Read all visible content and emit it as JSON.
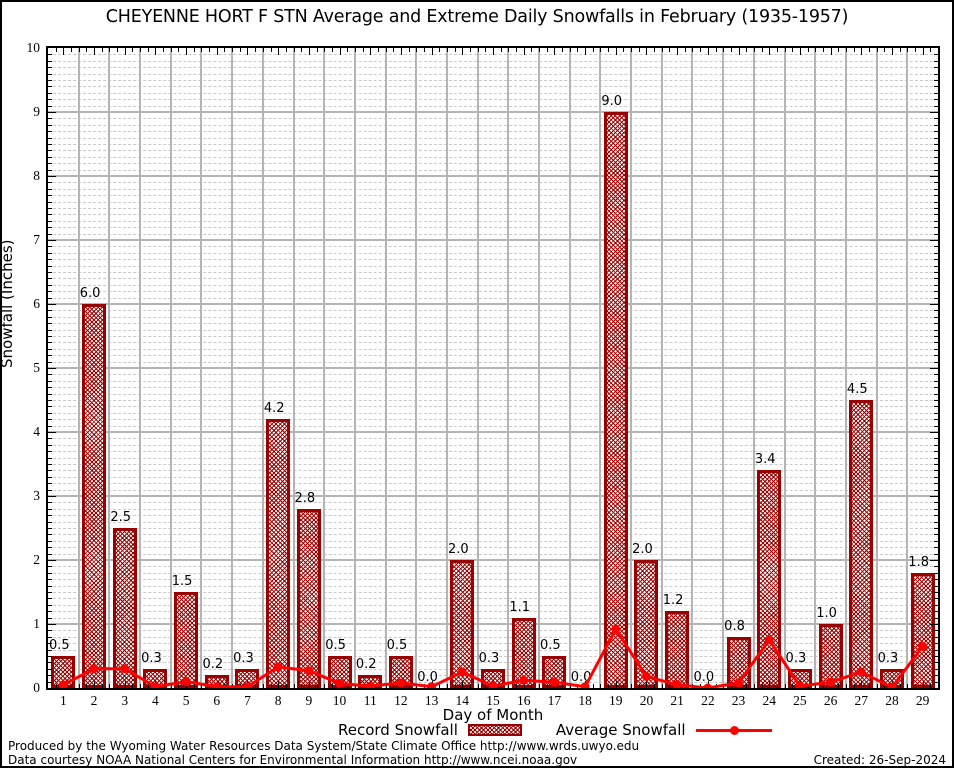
{
  "title": "CHEYENNE HORT F STN Average and Extreme Daily Snowfalls in February (1935-1957)",
  "chart_data": {
    "type": "bar",
    "title": "CHEYENNE HORT F STN Average and Extreme Daily Snowfalls in February (1935-1957)",
    "xlabel": "Day of Month",
    "ylabel": "Snowfall (Inches)",
    "ylim": [
      0,
      10
    ],
    "y_ticks": [
      0,
      1,
      2,
      3,
      4,
      5,
      6,
      7,
      8,
      9,
      10
    ],
    "grid": "major solid, minor dashed",
    "legend_position": "bottom",
    "categories": [
      1,
      2,
      3,
      4,
      5,
      6,
      7,
      8,
      9,
      10,
      11,
      12,
      13,
      14,
      15,
      16,
      17,
      18,
      19,
      20,
      21,
      22,
      23,
      24,
      25,
      26,
      27,
      28,
      29
    ],
    "series": [
      {
        "name": "Record Snowfall",
        "type": "bar",
        "color": "#990000",
        "values": [
          0.5,
          6.0,
          2.5,
          0.3,
          1.5,
          0.2,
          0.3,
          4.2,
          2.8,
          0.5,
          0.2,
          0.5,
          0.0,
          2.0,
          0.3,
          1.1,
          0.5,
          0.0,
          9.0,
          2.0,
          1.2,
          0.0,
          0.8,
          3.4,
          0.3,
          1.0,
          4.5,
          0.3,
          1.8
        ]
      },
      {
        "name": "Average Snowfall",
        "type": "line",
        "color": "#ff0000",
        "values": [
          0.05,
          0.3,
          0.3,
          0.02,
          0.1,
          0.02,
          0.02,
          0.33,
          0.27,
          0.07,
          0.03,
          0.08,
          0.02,
          0.25,
          0.03,
          0.12,
          0.09,
          0.02,
          0.92,
          0.18,
          0.05,
          0.0,
          0.08,
          0.75,
          0.03,
          0.09,
          0.25,
          0.01,
          0.65
        ]
      }
    ]
  },
  "legend": {
    "record_label": "Record Snowfall",
    "average_label": "Average Snowfall"
  },
  "footer": {
    "line1": "Produced by the Wyoming Water Resources Data System/State Climate Office http://www.wrds.uwyo.edu",
    "line2": "Data courtesy NOAA National Centers for Environmental Information http://www.ncei.noaa.gov",
    "created": "Created: 26-Sep-2024"
  }
}
